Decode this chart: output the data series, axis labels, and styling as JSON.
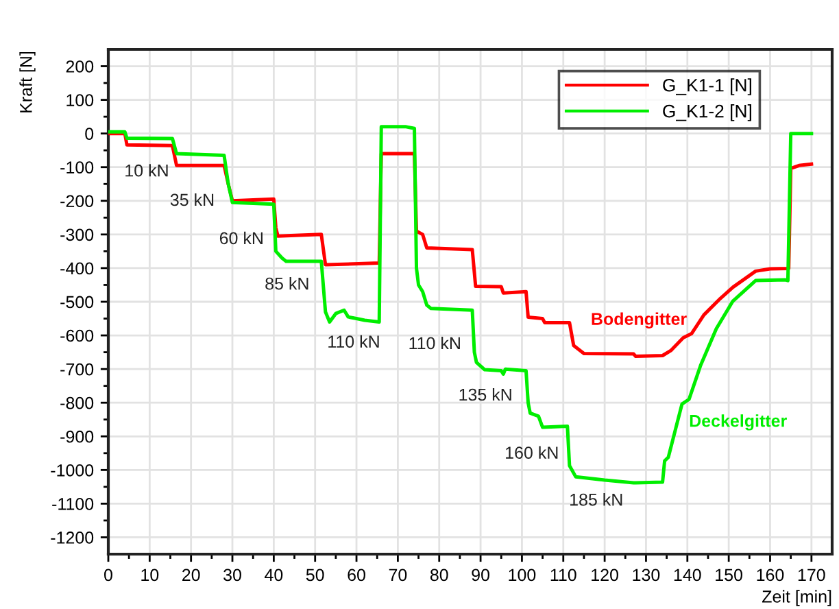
{
  "chart_data": {
    "type": "line",
    "xlabel": "Zeit [min]",
    "ylabel": "Kraft [N]",
    "xlim": [
      0,
      175
    ],
    "xticks": [
      0,
      10,
      20,
      30,
      40,
      50,
      60,
      70,
      80,
      90,
      100,
      110,
      120,
      130,
      140,
      150,
      160,
      170
    ],
    "ylim": [
      -1250,
      250
    ],
    "yticks": [
      -1200,
      -1100,
      -1000,
      -900,
      -800,
      -700,
      -600,
      -500,
      -400,
      -300,
      -200,
      -100,
      0,
      100,
      200
    ],
    "grid": true,
    "legend": "top right",
    "marker": "none",
    "line_style": "solid",
    "series": [
      {
        "name": "G_K1-1 [N]",
        "color": "#ff0000",
        "x": [
          0,
          4,
          4.5,
          15.5,
          16.5,
          28,
          29,
          30,
          40,
          40.5,
          41,
          51.5,
          52.5,
          65.5,
          66,
          74,
          74.5,
          76,
          77,
          88,
          88.8,
          95,
          95.5,
          101,
          101.5,
          105,
          105.5,
          111.5,
          112.5,
          115,
          127,
          127.5,
          134,
          136,
          139,
          141,
          144,
          148,
          151,
          156.5,
          160,
          164.5,
          165,
          167,
          170
        ],
        "values": [
          0,
          0,
          -34,
          -36,
          -95,
          -95,
          -150,
          -200,
          -195,
          -280,
          -305,
          -300,
          -390,
          -385,
          -60,
          -60,
          -290,
          -300,
          -340,
          -345,
          -454,
          -455,
          -474,
          -470,
          -546,
          -550,
          -562,
          -562,
          -630,
          -654,
          -655,
          -662,
          -660,
          -645,
          -607,
          -595,
          -539,
          -490,
          -457,
          -409,
          -402,
          -401,
          -104,
          -95,
          -91
        ]
      },
      {
        "name": "G_K1-2 [N]",
        "color": "#00ee00",
        "x": [
          0,
          4,
          4.5,
          15.5,
          16.5,
          28,
          29,
          30,
          40,
          40.5,
          42,
          43,
          51.5,
          52.5,
          53.5,
          55,
          57,
          58,
          60,
          62,
          65.5,
          66,
          72,
          74,
          74.5,
          75,
          76,
          77,
          78,
          88,
          88.5,
          89,
          91,
          95,
          95.5,
          96,
          101,
          101.5,
          102,
          104,
          105,
          111,
          111.5,
          113,
          120,
          127,
          127.5,
          134,
          134.5,
          135.4,
          138.7,
          140.4,
          143.2,
          147,
          151,
          156.5,
          163.7,
          164.3,
          165,
          170
        ],
        "values": [
          5,
          5,
          -14,
          -15,
          -60,
          -65,
          -150,
          -205,
          -210,
          -350,
          -370,
          -380,
          -380,
          -530,
          -560,
          -535,
          -525,
          -545,
          -550,
          -555,
          -560,
          20,
          20,
          15,
          -400,
          -450,
          -470,
          -510,
          -520,
          -525,
          -650,
          -680,
          -702,
          -705,
          -715,
          -700,
          -705,
          -800,
          -831,
          -840,
          -873,
          -870,
          -987,
          -1020,
          -1030,
          -1038,
          -1038,
          -1036,
          -973,
          -962,
          -804,
          -790,
          -689,
          -580,
          -498,
          -437,
          -435,
          -437,
          0,
          0
        ]
      }
    ],
    "annotations": [
      "10 kN",
      "35 kN",
      "60 kN",
      "85 kN",
      "110 kN",
      "110 kN",
      "135 kN",
      "160 kN",
      "185 kN",
      "Bodengitter",
      "Deckelgitter"
    ]
  }
}
